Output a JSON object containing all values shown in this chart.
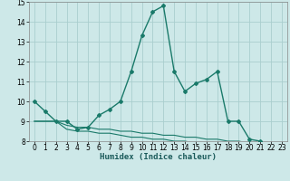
{
  "xlabel": "Humidex (Indice chaleur)",
  "background_color": "#cde8e8",
  "grid_color": "#aacece",
  "line_color": "#1a7a6a",
  "xlim": [
    -0.5,
    23.5
  ],
  "ylim": [
    8,
    15
  ],
  "xticks": [
    0,
    1,
    2,
    3,
    4,
    5,
    6,
    7,
    8,
    9,
    10,
    11,
    12,
    13,
    14,
    15,
    16,
    17,
    18,
    19,
    20,
    21,
    22,
    23
  ],
  "yticks": [
    8,
    9,
    10,
    11,
    12,
    13,
    14,
    15
  ],
  "main_x": [
    0,
    1,
    2,
    3,
    4,
    5,
    6,
    7,
    8,
    9,
    10,
    11,
    12,
    13,
    14,
    15,
    16,
    17,
    18,
    19,
    20,
    21,
    22,
    23
  ],
  "main_y": [
    10.0,
    9.5,
    9.0,
    9.0,
    8.6,
    8.7,
    9.3,
    9.6,
    10.0,
    11.5,
    13.3,
    14.5,
    14.8,
    11.5,
    10.5,
    10.9,
    11.1,
    11.5,
    9.0,
    9.0,
    8.1,
    8.0,
    7.8,
    7.7
  ],
  "line2_x": [
    0,
    1,
    2,
    3,
    4,
    5,
    6,
    7,
    8,
    9,
    10,
    11,
    12,
    13,
    14,
    15,
    16,
    17,
    18,
    19,
    20,
    21,
    22,
    23
  ],
  "line2_y": [
    9.0,
    9.0,
    9.0,
    8.8,
    8.7,
    8.7,
    8.6,
    8.6,
    8.5,
    8.5,
    8.4,
    8.4,
    8.3,
    8.3,
    8.2,
    8.2,
    8.1,
    8.1,
    8.0,
    8.0,
    7.9,
    7.9,
    7.8,
    7.7
  ],
  "line3_x": [
    0,
    1,
    2,
    3,
    4,
    5,
    6,
    7,
    8,
    9,
    10,
    11,
    12,
    13,
    14,
    15,
    16,
    17,
    18,
    19,
    20,
    21,
    22,
    23
  ],
  "line3_y": [
    9.0,
    9.0,
    9.0,
    8.6,
    8.5,
    8.5,
    8.4,
    8.4,
    8.3,
    8.2,
    8.2,
    8.1,
    8.1,
    8.0,
    8.0,
    7.9,
    7.9,
    7.8,
    7.8,
    7.7,
    7.7,
    7.7,
    7.7,
    7.6
  ],
  "tick_fontsize": 5.5,
  "xlabel_fontsize": 6.5
}
